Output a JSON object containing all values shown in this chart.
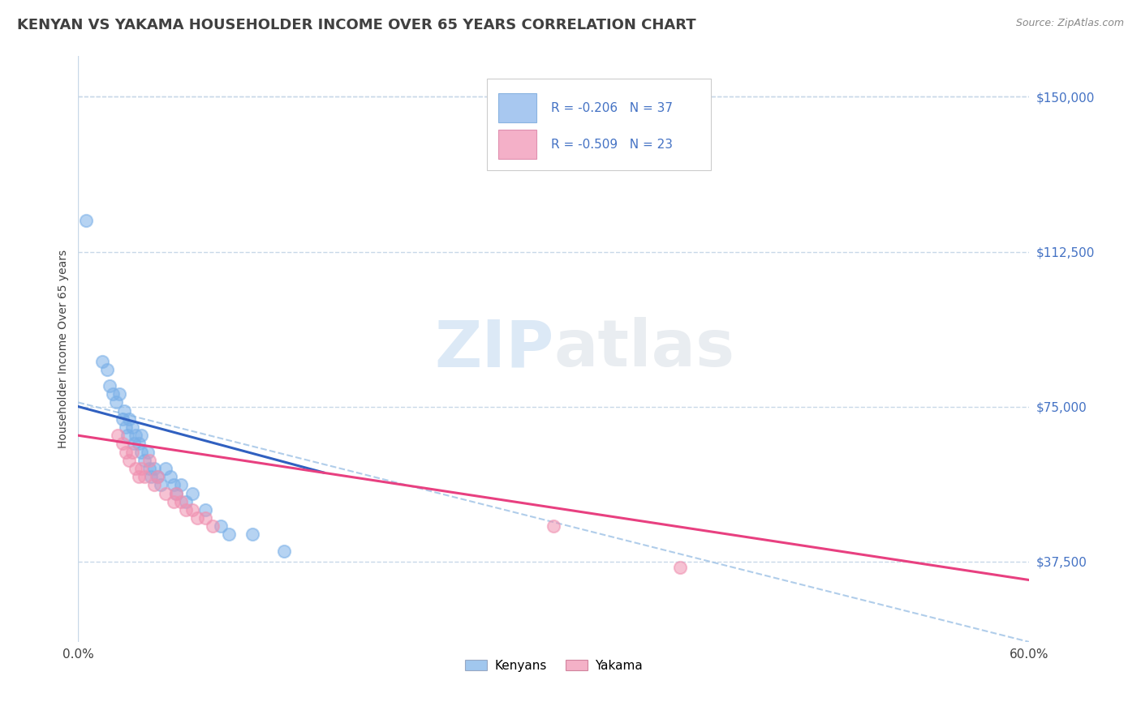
{
  "title": "KENYAN VS YAKAMA HOUSEHOLDER INCOME OVER 65 YEARS CORRELATION CHART",
  "source_text": "Source: ZipAtlas.com",
  "ylabel": "Householder Income Over 65 years",
  "xlim": [
    0.0,
    0.6
  ],
  "ylim": [
    18000,
    160000
  ],
  "yticks": [
    37500,
    75000,
    112500,
    150000
  ],
  "ytick_labels": [
    "$37,500",
    "$75,000",
    "$112,500",
    "$150,000"
  ],
  "xtick_vals": [
    0.0,
    0.6
  ],
  "xtick_labels": [
    "0.0%",
    "60.0%"
  ],
  "watermark_zip": "ZIP",
  "watermark_atlas": "atlas",
  "legend_entries": [
    {
      "label": "R = -0.206   N = 37",
      "color": "#a8c8f0",
      "border_color": "#8ab4e0"
    },
    {
      "label": "R = -0.509   N = 23",
      "color": "#f4b0c8",
      "border_color": "#e090b0"
    }
  ],
  "bottom_legend": [
    "Kenyans",
    "Yakama"
  ],
  "kenyan_color": "#7ab0e8",
  "yakama_color": "#f090b0",
  "kenyan_trend_color": "#3060c0",
  "yakama_trend_color": "#e84080",
  "dashed_line_color": "#a8c8e8",
  "background_color": "#ffffff",
  "grid_color": "#c8d8e8",
  "title_color": "#404040",
  "source_color": "#888888",
  "label_color": "#4472c4",
  "title_fontsize": 13,
  "axis_label_fontsize": 10,
  "tick_fontsize": 11,
  "kenyan_points": [
    [
      0.005,
      120000
    ],
    [
      0.015,
      86000
    ],
    [
      0.018,
      84000
    ],
    [
      0.02,
      80000
    ],
    [
      0.022,
      78000
    ],
    [
      0.024,
      76000
    ],
    [
      0.026,
      78000
    ],
    [
      0.028,
      72000
    ],
    [
      0.029,
      74000
    ],
    [
      0.03,
      70000
    ],
    [
      0.031,
      68000
    ],
    [
      0.032,
      72000
    ],
    [
      0.034,
      70000
    ],
    [
      0.035,
      66000
    ],
    [
      0.036,
      68000
    ],
    [
      0.038,
      66000
    ],
    [
      0.04,
      68000
    ],
    [
      0.04,
      64000
    ],
    [
      0.042,
      62000
    ],
    [
      0.044,
      64000
    ],
    [
      0.045,
      60000
    ],
    [
      0.046,
      58000
    ],
    [
      0.048,
      60000
    ],
    [
      0.05,
      58000
    ],
    [
      0.052,
      56000
    ],
    [
      0.055,
      60000
    ],
    [
      0.058,
      58000
    ],
    [
      0.06,
      56000
    ],
    [
      0.062,
      54000
    ],
    [
      0.065,
      56000
    ],
    [
      0.068,
      52000
    ],
    [
      0.072,
      54000
    ],
    [
      0.08,
      50000
    ],
    [
      0.09,
      46000
    ],
    [
      0.095,
      44000
    ],
    [
      0.11,
      44000
    ],
    [
      0.13,
      40000
    ]
  ],
  "yakama_points": [
    [
      0.025,
      68000
    ],
    [
      0.028,
      66000
    ],
    [
      0.03,
      64000
    ],
    [
      0.032,
      62000
    ],
    [
      0.034,
      64000
    ],
    [
      0.036,
      60000
    ],
    [
      0.038,
      58000
    ],
    [
      0.04,
      60000
    ],
    [
      0.042,
      58000
    ],
    [
      0.045,
      62000
    ],
    [
      0.048,
      56000
    ],
    [
      0.05,
      58000
    ],
    [
      0.055,
      54000
    ],
    [
      0.06,
      52000
    ],
    [
      0.062,
      54000
    ],
    [
      0.065,
      52000
    ],
    [
      0.068,
      50000
    ],
    [
      0.072,
      50000
    ],
    [
      0.075,
      48000
    ],
    [
      0.08,
      48000
    ],
    [
      0.085,
      46000
    ],
    [
      0.3,
      46000
    ],
    [
      0.38,
      36000
    ]
  ],
  "kenyan_line_x": [
    0.0,
    0.155
  ],
  "kenyan_line_y": [
    75000,
    59000
  ],
  "yakama_line_x": [
    0.0,
    0.6
  ],
  "yakama_line_y": [
    68000,
    33000
  ],
  "dashed_line_x": [
    0.0,
    0.6
  ],
  "dashed_line_y": [
    76000,
    18000
  ]
}
